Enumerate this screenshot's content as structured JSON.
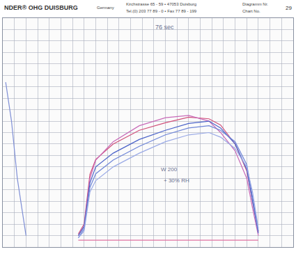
{
  "chart_data": {
    "type": "line",
    "annotations": [
      "NDER® OHG DUISBURG",
      "Germany",
      "Kirchstrasse 65 - 59 • 47053 Duisburg",
      "Tel.(0) 203 77 89 - 0 • Fax 77 89 - 199",
      "Diagramm Nr.",
      "Chart No.",
      "29",
      "76 sec",
      "W 200",
      "+ 30% RH"
    ],
    "x": [
      1,
      3,
      5,
      8,
      26,
      28,
      30,
      32,
      38,
      47,
      56,
      64,
      71,
      75,
      80,
      84,
      86,
      88
    ],
    "series": [
      {
        "color": "#7f8fd6",
        "values": [
          72,
          55,
          30,
          5,
          null,
          null,
          null,
          null,
          null,
          null,
          null,
          null,
          null,
          null,
          null,
          null,
          null,
          null
        ]
      },
      {
        "color": "#d0507a",
        "values": [
          null,
          null,
          null,
          null,
          5.7,
          10,
          31.7,
          38.3,
          45,
          51,
          54.3,
          56.7,
          56,
          53.3,
          45,
          33.3,
          20,
          6.7
        ]
      },
      {
        "color": "#c86ab8",
        "values": [
          null,
          null,
          null,
          null,
          5,
          9,
          30,
          38,
          46,
          53,
          56.5,
          57.5,
          55,
          50,
          42,
          30,
          17,
          5
        ]
      },
      {
        "color": "#4a62c8",
        "values": [
          null,
          null,
          null,
          null,
          5,
          9,
          28,
          35,
          41,
          47,
          51,
          54,
          55,
          52,
          45,
          34,
          20,
          6
        ]
      },
      {
        "color": "#6f86d8",
        "values": [
          null,
          null,
          null,
          null,
          4,
          8,
          26,
          32,
          38,
          44,
          49,
          52,
          53,
          51,
          46,
          36,
          22,
          7
        ]
      },
      {
        "color": "#9aaae6",
        "values": [
          null,
          null,
          null,
          null,
          4,
          7,
          24,
          29,
          35,
          41,
          46,
          49,
          50,
          48,
          43,
          35,
          24,
          8
        ]
      },
      {
        "color": "#e070a0",
        "values": [
          null,
          null,
          null,
          null,
          3,
          3,
          3,
          3,
          3,
          3,
          3,
          3,
          3,
          3,
          3,
          3,
          3,
          3
        ]
      }
    ],
    "xlim": [
      0,
      100
    ],
    "ylim": [
      0,
      100
    ],
    "xticks": [
      0,
      4,
      8,
      12,
      16,
      20,
      24,
      28,
      32,
      36,
      40,
      44,
      48,
      52,
      56,
      60,
      64,
      68,
      72,
      76,
      80,
      84,
      88,
      92,
      96,
      100
    ],
    "yticks": [
      0,
      5,
      10,
      15,
      20,
      25,
      30,
      35,
      40,
      45,
      50,
      55,
      60,
      65,
      70,
      75,
      80,
      85,
      90,
      95,
      100
    ],
    "grid": true,
    "tick_labels": false
  }
}
